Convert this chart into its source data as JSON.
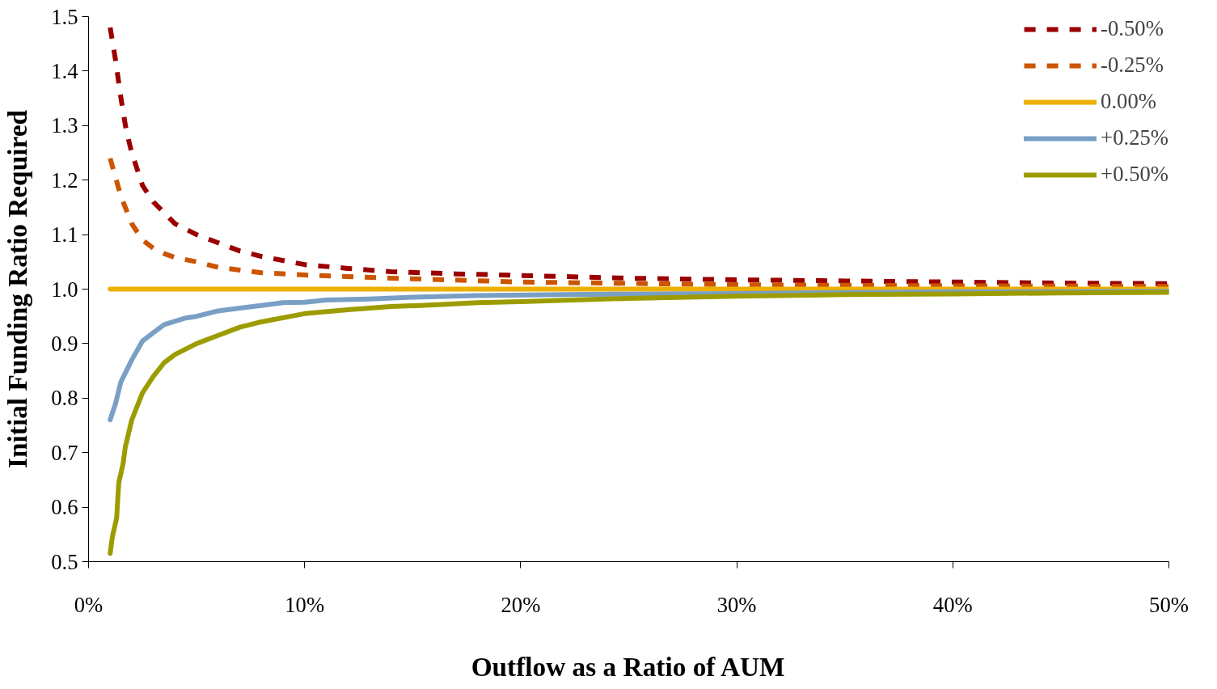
{
  "chart_data": {
    "type": "line",
    "xlabel": "Outflow as a Ratio of AUM",
    "ylabel": "Initial Funding Ratio Required",
    "xlim": [
      0,
      50
    ],
    "xticks": [
      {
        "value": 0,
        "label": "0%"
      },
      {
        "value": 10,
        "label": "10%"
      },
      {
        "value": 20,
        "label": "20%"
      },
      {
        "value": 30,
        "label": "30%"
      },
      {
        "value": 40,
        "label": "40%"
      },
      {
        "value": 50,
        "label": "50%"
      }
    ],
    "ylim": [
      0.5,
      1.5
    ],
    "yticks": [
      0.5,
      0.6,
      0.7,
      0.8,
      0.9,
      {
        "value": 1.0,
        "label": "1.0"
      },
      1.1,
      1.2,
      1.3,
      1.4,
      1.5
    ],
    "grid": false,
    "legend": "top right",
    "series": [
      {
        "name": "-0.50%",
        "color": "#9b0000",
        "line_style": "dashed",
        "x": [
          1,
          1.25,
          1.5,
          1.75,
          2,
          2.5,
          3,
          3.5,
          4,
          5,
          6,
          7,
          8,
          10,
          12,
          14,
          17,
          20,
          25,
          30,
          35,
          40,
          45,
          50
        ],
        "values": [
          1.48,
          1.42,
          1.35,
          1.29,
          1.25,
          1.19,
          1.16,
          1.14,
          1.12,
          1.1,
          1.085,
          1.07,
          1.06,
          1.045,
          1.038,
          1.032,
          1.028,
          1.025,
          1.02,
          1.017,
          1.015,
          1.013,
          1.011,
          1.01
        ]
      },
      {
        "name": "-0.25%",
        "color": "#cc5500",
        "line_style": "dashed",
        "x": [
          1,
          1.5,
          2,
          2.5,
          3,
          3.5,
          4,
          5,
          6,
          7,
          8,
          10,
          14,
          20,
          30,
          40,
          50
        ],
        "values": [
          1.24,
          1.17,
          1.12,
          1.09,
          1.075,
          1.065,
          1.058,
          1.05,
          1.04,
          1.035,
          1.03,
          1.026,
          1.02,
          1.013,
          1.008,
          1.006,
          1.005
        ]
      },
      {
        "name": "0.00%",
        "color": "#eeb000",
        "line_style": "solid",
        "x": [
          1,
          50
        ],
        "values": [
          1.0,
          1.0
        ]
      },
      {
        "name": "+0.25%",
        "color": "#7a9fc4",
        "line_style": "solid",
        "x": [
          1,
          1.25,
          1.5,
          2,
          2.5,
          3,
          3.5,
          4.5,
          5,
          6,
          7,
          8,
          9,
          10,
          11,
          13,
          15,
          18,
          22,
          30,
          40,
          50
        ],
        "values": [
          0.76,
          0.79,
          0.83,
          0.87,
          0.905,
          0.92,
          0.935,
          0.947,
          0.95,
          0.96,
          0.965,
          0.97,
          0.975,
          0.976,
          0.98,
          0.982,
          0.985,
          0.988,
          0.99,
          0.992,
          0.995,
          0.996
        ]
      },
      {
        "name": "+0.50%",
        "color": "#9c9c00",
        "line_style": "solid",
        "x": [
          1,
          1.1,
          1.3,
          1.4,
          1.6,
          1.7,
          2,
          2.5,
          3,
          3.5,
          4,
          5,
          6,
          7,
          8,
          10,
          12,
          14,
          16,
          18,
          20,
          25,
          30,
          35,
          40,
          45,
          50
        ],
        "values": [
          0.515,
          0.545,
          0.58,
          0.645,
          0.68,
          0.71,
          0.76,
          0.81,
          0.84,
          0.865,
          0.88,
          0.9,
          0.915,
          0.93,
          0.94,
          0.955,
          0.962,
          0.968,
          0.971,
          0.975,
          0.977,
          0.983,
          0.987,
          0.99,
          0.991,
          0.993,
          0.994
        ]
      }
    ]
  }
}
